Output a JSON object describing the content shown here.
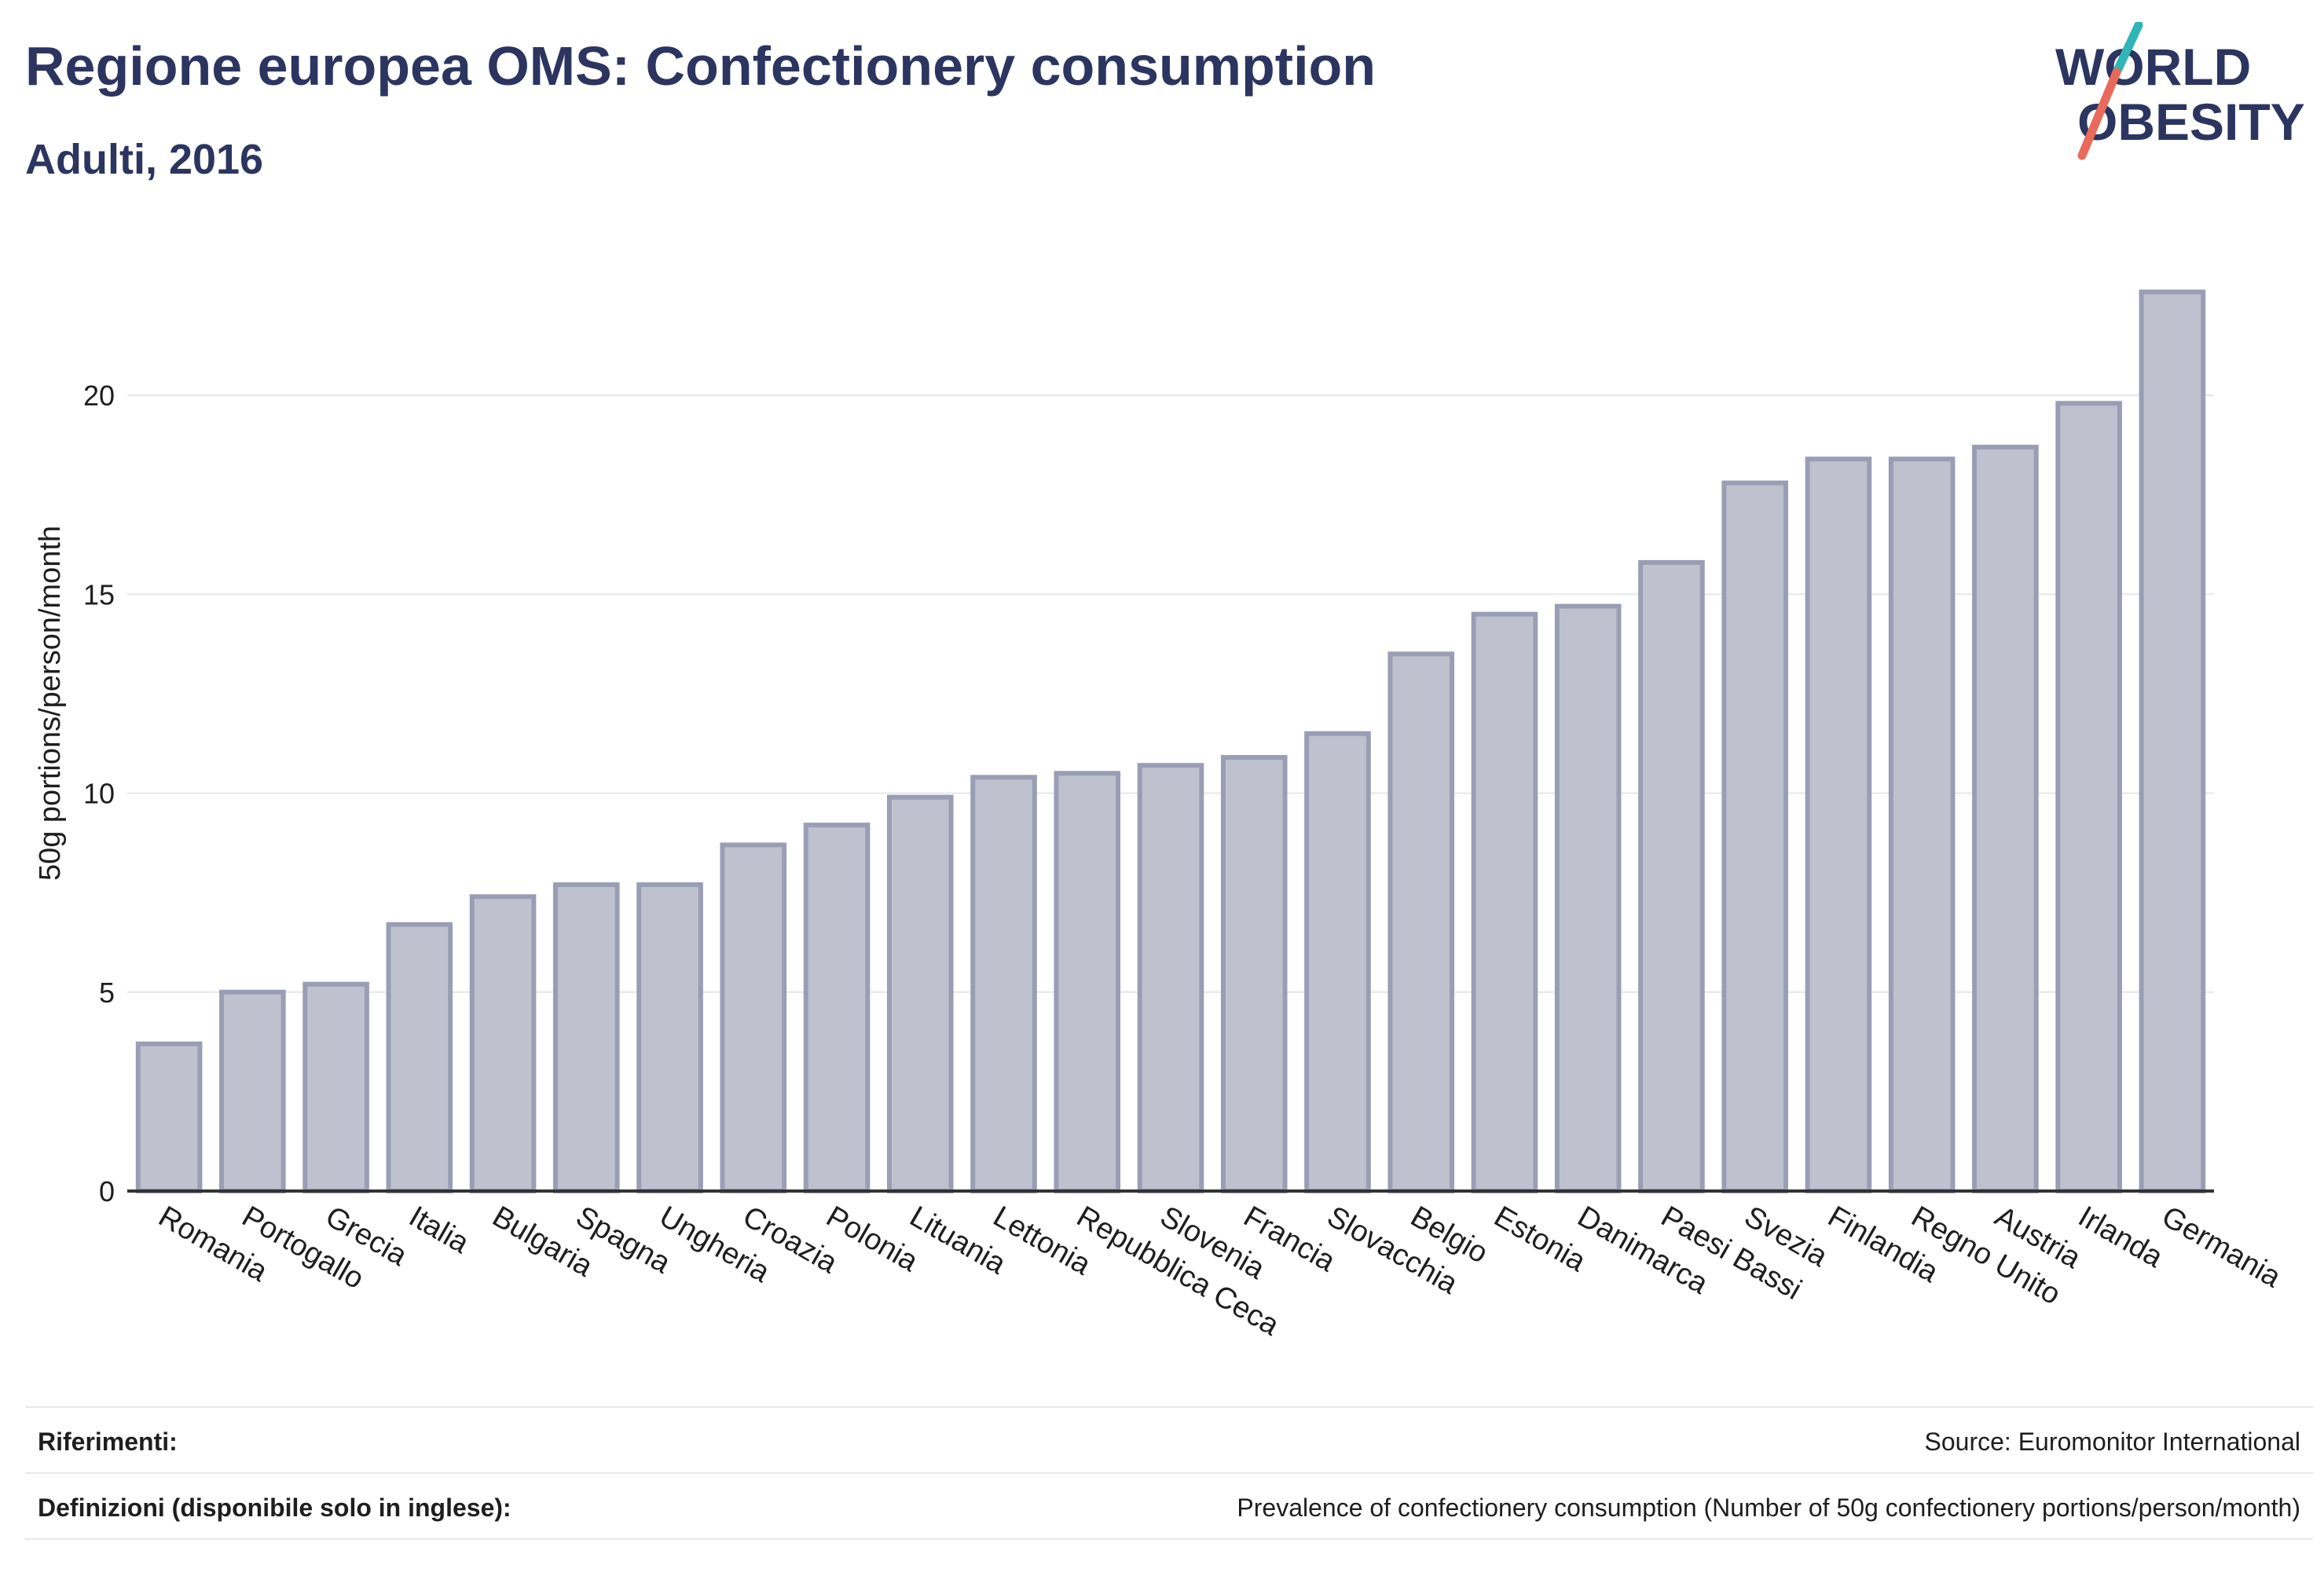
{
  "title": "Regione europea OMS: Confectionery consumption",
  "subtitle": "Adulti, 2016",
  "logo": {
    "line1": "WORLD",
    "line2": "OBESITY",
    "teal": "#2fb5b5",
    "coral": "#e86a5a",
    "navy": "#2c3560"
  },
  "colors": {
    "bar_fill": "#bfc1ce",
    "bar_stroke": "#9a9eb4",
    "axis": "#333333",
    "grid": "#e6e6ec",
    "text": "#1e1e1e"
  },
  "chart_data": {
    "type": "bar",
    "ylabel": "50g portions/person/month",
    "xlabel": "",
    "ylim": [
      0,
      23.5
    ],
    "yticks": [
      0,
      5,
      10,
      15,
      20
    ],
    "grid": true,
    "categories": [
      "Romania",
      "Portogallo",
      "Grecia",
      "Italia",
      "Bulgaria",
      "Spagna",
      "Ungheria",
      "Croazia",
      "Polonia",
      "Lituania",
      "Lettonia",
      "Repubblica Ceca",
      "Slovenia",
      "Francia",
      "Slovacchia",
      "Belgio",
      "Estonia",
      "Danimarca",
      "Paesi Bassi",
      "Svezia",
      "Finlandia",
      "Regno Unito",
      "Austria",
      "Irlanda",
      "Germania"
    ],
    "values": [
      3.7,
      5.0,
      5.2,
      6.7,
      7.4,
      7.7,
      7.7,
      8.7,
      9.2,
      9.9,
      10.4,
      10.5,
      10.7,
      10.9,
      11.5,
      13.5,
      14.5,
      14.7,
      15.8,
      17.8,
      18.4,
      18.4,
      18.7,
      19.8,
      22.6
    ]
  },
  "footer": {
    "refs_label": "Riferimenti:",
    "refs_value": "Source: Euromonitor International",
    "defs_label": "Definizioni (disponibile solo in inglese):",
    "defs_value": "Prevalence of confectionery consumption (Number of 50g confectionery portions/person/month)"
  }
}
